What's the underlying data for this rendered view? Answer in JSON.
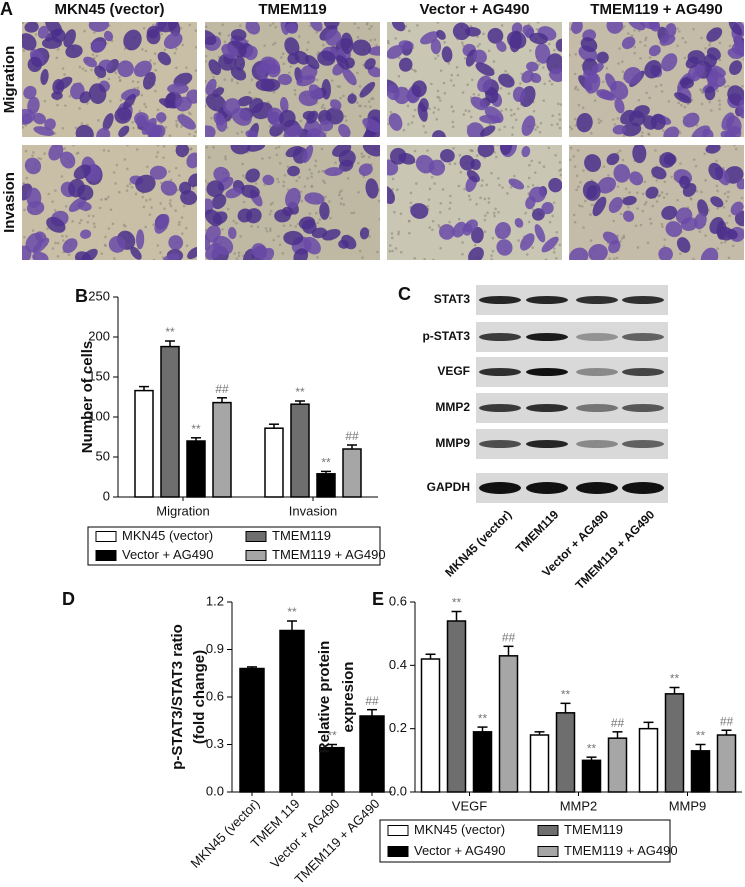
{
  "panel_a": {
    "letter": "A",
    "columns": [
      "MKN45 (vector)",
      "TMEM119",
      "Vector + AG490",
      "TMEM119 + AG490"
    ],
    "rows": [
      "Migration",
      "Invasion"
    ]
  },
  "panel_c": {
    "letter": "C",
    "proteins": [
      "STAT3",
      "p-STAT3",
      "VEGF",
      "MMP2",
      "MMP9",
      "GAPDH"
    ],
    "lanes": [
      "MKN45 (vector)",
      "TMEM119",
      "Vector + AG490",
      "TMEM119 + AG490"
    ]
  },
  "chart_data": [
    {
      "type": "bar",
      "panel": "B",
      "ylabel": [
        "Number of cells"
      ],
      "categories": [
        "Migration",
        "Invasion"
      ],
      "series": [
        {
          "name": "MKN45 (vector)",
          "color": "#ffffff",
          "values": [
            133,
            86
          ],
          "errors": [
            5,
            5
          ],
          "annotations": [
            null,
            null
          ]
        },
        {
          "name": "TMEM119",
          "color": "#6e6e6e",
          "values": [
            188,
            116
          ],
          "errors": [
            7,
            4
          ],
          "annotations": [
            "**",
            "**"
          ]
        },
        {
          "name": "Vector + AG490",
          "color": "#000000",
          "values": [
            70,
            29
          ],
          "errors": [
            4,
            3
          ],
          "annotations": [
            "**",
            "**"
          ]
        },
        {
          "name": "TMEM119 + AG490",
          "color": "#a6a6a6",
          "values": [
            118,
            60
          ],
          "errors": [
            6,
            5
          ],
          "annotations": [
            "##",
            "##"
          ]
        }
      ],
      "ylim": [
        0,
        250
      ],
      "yticks": [
        0,
        50,
        100,
        150,
        200,
        250
      ],
      "legend": "bottom"
    },
    {
      "type": "bar",
      "panel": "D",
      "ylabel": [
        "p-STAT3/STAT3 ratio",
        "(fold change)"
      ],
      "categories": [
        "MKN45 (vector)",
        "TMEM 119",
        "Vector + AG490",
        "TMEM119 + AG490"
      ],
      "values": [
        0.78,
        1.02,
        0.28,
        0.48
      ],
      "errors": [
        0.01,
        0.06,
        0.02,
        0.04
      ],
      "annotations": [
        null,
        "**",
        "**",
        "##"
      ],
      "color": "#000000",
      "ylim": [
        0,
        1.2
      ],
      "yticks": [
        {
          "value": 0,
          "label": "0.0"
        },
        0.3,
        0.6,
        0.9,
        1.2
      ]
    },
    {
      "type": "bar",
      "panel": "E",
      "ylabel": [
        "Relative protein",
        "expresion"
      ],
      "categories": [
        "VEGF",
        "MMP2",
        "MMP9"
      ],
      "series": [
        {
          "name": "MKN45 (vector)",
          "color": "#ffffff",
          "values": [
            0.42,
            0.18,
            0.2
          ],
          "errors": [
            0.015,
            0.01,
            0.02
          ],
          "annotations": [
            null,
            null,
            null
          ]
        },
        {
          "name": "TMEM119",
          "color": "#6e6e6e",
          "values": [
            0.54,
            0.25,
            0.31
          ],
          "errors": [
            0.03,
            0.03,
            0.02
          ],
          "annotations": [
            "**",
            "**",
            "**"
          ]
        },
        {
          "name": "Vector + AG490",
          "color": "#000000",
          "values": [
            0.19,
            0.1,
            0.13
          ],
          "errors": [
            0.015,
            0.01,
            0.02
          ],
          "annotations": [
            "**",
            "**",
            "**"
          ]
        },
        {
          "name": "TMEM119 + AG490",
          "color": "#a6a6a6",
          "values": [
            0.43,
            0.17,
            0.18
          ],
          "errors": [
            0.03,
            0.02,
            0.015
          ],
          "annotations": [
            "##",
            "##",
            "##"
          ]
        }
      ],
      "ylim": [
        0,
        0.6
      ],
      "yticks": [
        {
          "value": 0,
          "label": "0.0"
        },
        0.2,
        0.4,
        0.6
      ],
      "legend": "bottom"
    }
  ]
}
